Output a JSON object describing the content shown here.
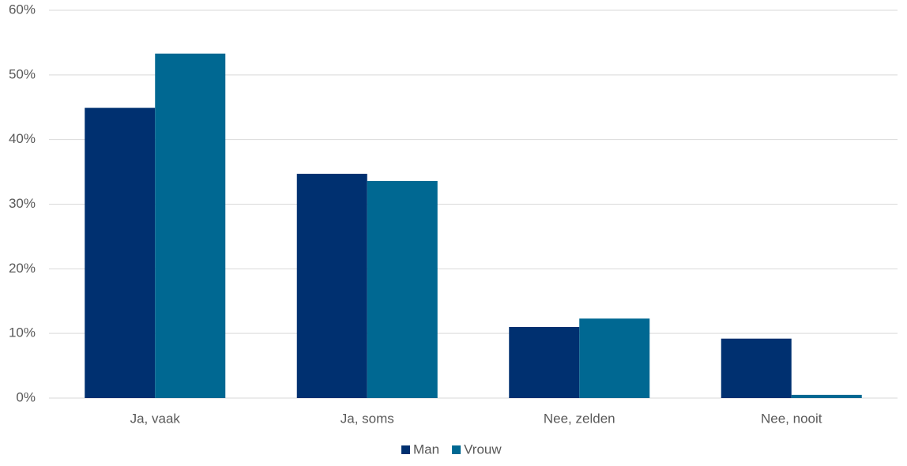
{
  "chart_data": {
    "type": "bar",
    "categories": [
      "Ja, vaak",
      "Ja, soms",
      "Nee, zelden",
      "Nee, nooit"
    ],
    "series": [
      {
        "name": "Man",
        "color": "#003070",
        "values": [
          44.9,
          34.7,
          11.0,
          9.2
        ]
      },
      {
        "name": "Vrouw",
        "color": "#006892",
        "values": [
          53.3,
          33.6,
          12.3,
          0.5
        ]
      }
    ],
    "ylim": [
      0,
      60
    ],
    "yticks": [
      {
        "value": 0,
        "label": "0%"
      },
      {
        "value": 10,
        "label": "10%"
      },
      {
        "value": 20,
        "label": "20%"
      },
      {
        "value": 30,
        "label": "30%"
      },
      {
        "value": 40,
        "label": "40%"
      },
      {
        "value": 50,
        "label": "50%"
      },
      {
        "value": 60,
        "label": "60%"
      }
    ],
    "grid": true,
    "legend": "bottom"
  }
}
